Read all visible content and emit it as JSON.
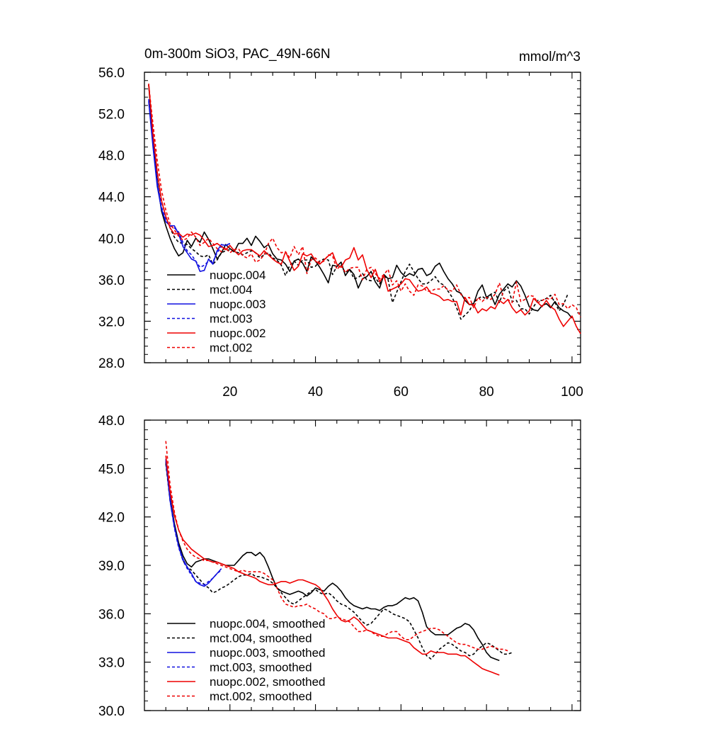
{
  "page": {
    "title_left": "0m-300m SiO3, PAC_49N-66N",
    "title_right": "mmol/m^3"
  },
  "colors": {
    "nuopc.004": "#000000",
    "mct.004": "#000000",
    "nuopc.003": "#1010e0",
    "mct.003": "#1010e0",
    "nuopc.002": "#ee0000",
    "mct.002": "#ee0000"
  },
  "chart_data": [
    {
      "type": "line",
      "panel": "top",
      "xlim": [
        0,
        102
      ],
      "ylim": [
        28,
        56
      ],
      "xticks": [
        20,
        40,
        60,
        80,
        100
      ],
      "yticks": [
        28,
        32,
        36,
        40,
        44,
        48,
        52,
        56
      ],
      "ytick_labels": [
        "28.0",
        "32.0",
        "36.0",
        "40.0",
        "44.0",
        "48.0",
        "52.0",
        "56.0"
      ],
      "grid": false,
      "legend_position": "bottom-left",
      "series": [
        {
          "name": "nuopc.004",
          "color": "#000000",
          "dash": false,
          "x_start": 1,
          "values": [
            54.8,
            49.5,
            45.4,
            42.6,
            41.2,
            40.0,
            39.0,
            38.3,
            38.6,
            39.8,
            39.2,
            40.0,
            39.6,
            40.6,
            39.9,
            39.0,
            38.0,
            38.6,
            39.4,
            39.0,
            38.7,
            39.5,
            39.5,
            40.0,
            39.3,
            40.2,
            39.7,
            39.1,
            39.4,
            38.5,
            38.0,
            37.9,
            37.5,
            36.8,
            37.8,
            38.0,
            37.6,
            36.8,
            38.2,
            37.8,
            37.2,
            36.5,
            35.7,
            37.4,
            37.3,
            37.7,
            36.4,
            37.0,
            36.5,
            35.2,
            36.1,
            36.3,
            36.8,
            35.8,
            35.2,
            36.5,
            36.1,
            36.2,
            37.4,
            36.7,
            36.3,
            36.6,
            36.4,
            37.0,
            37.1,
            36.4,
            36.6,
            37.3,
            37.6,
            36.8,
            36.1,
            35.6,
            34.9,
            34.7,
            34.0,
            33.6,
            33.7,
            34.9,
            35.5,
            34.3,
            34.6,
            33.6,
            34.6,
            35.1,
            35.6,
            35.3,
            35.9,
            35.4,
            34.5,
            33.4,
            33.1,
            33.0,
            33.5,
            33.7,
            33.3,
            33.9,
            33.3,
            33.0,
            32.8,
            32.3
          ]
        },
        {
          "name": "mct.004",
          "color": "#000000",
          "dash": true,
          "x_start": 1,
          "values": [
            54.8,
            50.0,
            46.2,
            43.6,
            42.1,
            41.0,
            40.1,
            39.6,
            39.5,
            39.4,
            39.0,
            38.7,
            38.3,
            38.2,
            38.4,
            37.5,
            37.9,
            38.6,
            38.8,
            38.9,
            38.7,
            38.6,
            38.4,
            38.6,
            38.8,
            38.6,
            38.1,
            38.4,
            38.6,
            38.1,
            37.9,
            37.4,
            36.4,
            37.4,
            37.8,
            37.4,
            37.9,
            37.9,
            37.2,
            37.3,
            37.8,
            38.0,
            37.9,
            36.5,
            37.3,
            37.4,
            36.7,
            37.0,
            36.1,
            36.2,
            36.6,
            36.0,
            35.9,
            36.2,
            35.6,
            36.4,
            36.0,
            33.8,
            34.8,
            35.8,
            36.8,
            37.5,
            36.8,
            36.1,
            35.6,
            35.6,
            35.9,
            36.3,
            35.7,
            35.5,
            34.9,
            34.3,
            33.3,
            32.2,
            32.6,
            33.0,
            33.8,
            34.2,
            34.4,
            34.1,
            34.6,
            34.8,
            33.8,
            34.9,
            35.3,
            33.9,
            34.0,
            33.2,
            33.2,
            32.7,
            33.4,
            34.0,
            34.0,
            34.2,
            34.5,
            33.8,
            33.0,
            33.6,
            34.6
          ]
        },
        {
          "name": "nuopc.003",
          "color": "#1010e0",
          "dash": false,
          "x_start": 1,
          "values": [
            53.2,
            48.8,
            45.0,
            42.8,
            41.6,
            41.2,
            41.2,
            40.4,
            39.2,
            38.6,
            38.0,
            37.8,
            36.8,
            36.9,
            38.0,
            37.5,
            38.8,
            39.4,
            39.3,
            39.5
          ]
        },
        {
          "name": "mct.003",
          "color": "#1010e0",
          "dash": true,
          "x_start": 1,
          "values": [
            53.4,
            49.2,
            45.4,
            43.0,
            41.8,
            41.2,
            41.0,
            40.6,
            39.6,
            38.8,
            38.4,
            37.8,
            37.2,
            37.4,
            37.8,
            37.7,
            38.6,
            39.2,
            39.3,
            39.4
          ]
        },
        {
          "name": "nuopc.002",
          "color": "#ee0000",
          "dash": false,
          "x_start": 1,
          "values": [
            54.9,
            50.0,
            46.4,
            43.6,
            42.1,
            41.0,
            40.4,
            40.5,
            40.1,
            40.4,
            40.3,
            40.5,
            40.3,
            39.8,
            39.2,
            39.3,
            39.5,
            39.2,
            38.9,
            39.3,
            38.8,
            38.4,
            38.8,
            38.9,
            38.9,
            38.6,
            38.3,
            38.8,
            38.4,
            38.0,
            37.7,
            37.5,
            38.7,
            37.8,
            36.9,
            37.3,
            38.5,
            38.3,
            38.5,
            37.8,
            37.5,
            37.9,
            38.3,
            38.6,
            37.5,
            37.2,
            37.9,
            38.1,
            39.1,
            37.9,
            38.4,
            37.0,
            36.2,
            37.0,
            35.8,
            36.4,
            34.9,
            35.1,
            35.3,
            35.6,
            36.1,
            36.0,
            35.4,
            34.9,
            35.0,
            35.3,
            34.7,
            34.6,
            34.4,
            34.0,
            34.1,
            33.9,
            33.9,
            32.6,
            34.3,
            33.6,
            33.6,
            32.8,
            33.2,
            33.0,
            33.4,
            33.2,
            34.0,
            33.7,
            34.1,
            33.3,
            32.8,
            33.1,
            32.6,
            33.0,
            34.2,
            33.8,
            33.4,
            34.0,
            33.4,
            33.1,
            32.2,
            31.5,
            32.0,
            32.5,
            31.5,
            30.8
          ]
        },
        {
          "name": "mct.002",
          "color": "#ee0000",
          "dash": true,
          "x_start": 1,
          "values": [
            54.8,
            51.0,
            47.5,
            44.6,
            42.7,
            41.4,
            40.8,
            40.2,
            39.8,
            40.0,
            40.6,
            40.1,
            39.3,
            39.6,
            40.0,
            39.5,
            39.0,
            38.7,
            39.1,
            38.6,
            38.9,
            39.0,
            38.3,
            38.1,
            38.5,
            37.7,
            37.9,
            38.4,
            39.5,
            40.0,
            39.1,
            38.6,
            38.7,
            38.1,
            39.2,
            38.4,
            39.2,
            36.6,
            37.9,
            38.1,
            37.6,
            37.8,
            38.4,
            38.3,
            37.0,
            37.4,
            36.7,
            37.1,
            37.2,
            37.2,
            36.0,
            37.0,
            37.2,
            36.6,
            36.1,
            36.5,
            37.0,
            35.5,
            35.9,
            34.9,
            35.6,
            34.9,
            34.5,
            35.5,
            35.4,
            34.9,
            34.9,
            35.1,
            35.1,
            35.4,
            35.0,
            34.9,
            35.5,
            34.6,
            34.2,
            34.3,
            33.3,
            34.3,
            33.9,
            34.3,
            34.1,
            34.6,
            35.7,
            34.2,
            34.1,
            33.8,
            35.8,
            33.9,
            34.1,
            34.5,
            34.4,
            33.8,
            34.0,
            34.2,
            34.1,
            34.6,
            33.6,
            33.7,
            33.2,
            33.6,
            33.3,
            32.4
          ]
        }
      ],
      "legend": [
        "nuopc.004",
        "mct.004",
        "nuopc.003",
        "mct.003",
        "nuopc.002",
        "mct.002"
      ]
    },
    {
      "type": "line",
      "panel": "bottom",
      "xlim": [
        0,
        102
      ],
      "ylim": [
        30,
        48
      ],
      "xticks": [
        20,
        40,
        60,
        80,
        100
      ],
      "yticks": [
        30,
        33,
        36,
        39,
        42,
        45,
        48
      ],
      "ytick_labels": [
        "30.0",
        "33.0",
        "36.0",
        "39.0",
        "42.0",
        "45.0",
        "48.0"
      ],
      "grid": false,
      "legend_position": "bottom-left",
      "series": [
        {
          "name": "nuopc.004, smoothed",
          "color": "#000000",
          "dash": false,
          "x_start": 5,
          "values": [
            45.4,
            43.2,
            41.6,
            40.4,
            39.6,
            39.1,
            38.9,
            39.2,
            39.3,
            39.4,
            39.4,
            39.3,
            39.2,
            39.1,
            39.0,
            39.0,
            39.0,
            39.3,
            39.6,
            39.8,
            39.8,
            39.6,
            39.8,
            39.5,
            38.9,
            38.2,
            37.6,
            37.4,
            37.3,
            37.2,
            37.3,
            37.4,
            37.3,
            37.1,
            37.3,
            37.6,
            37.5,
            37.4,
            37.7,
            37.9,
            37.7,
            37.4,
            37.0,
            36.7,
            36.5,
            36.4,
            36.3,
            36.4,
            36.3,
            36.3,
            36.2,
            36.4,
            36.5,
            36.5,
            36.6,
            36.8,
            37.0,
            36.9,
            37.0,
            36.8,
            36.1,
            35.2,
            34.9,
            34.7,
            34.7,
            34.7,
            34.7,
            34.9,
            35.1,
            35.2,
            35.4,
            35.3,
            35.0,
            34.5,
            34.1,
            33.6,
            33.3,
            33.2,
            33.1
          ]
        },
        {
          "name": "mct.004, smoothed",
          "color": "#000000",
          "dash": true,
          "x_start": 5,
          "values": [
            45.3,
            43.0,
            41.4,
            40.2,
            39.3,
            38.9,
            38.7,
            38.4,
            38.1,
            37.8,
            37.6,
            37.3,
            37.4,
            37.6,
            37.7,
            37.9,
            38.1,
            38.3,
            38.4,
            38.4,
            38.5,
            38.3,
            38.3,
            38.2,
            38.1,
            37.9,
            37.6,
            37.3,
            37.0,
            36.7,
            36.6,
            36.8,
            37.0,
            37.2,
            37.4,
            37.5,
            37.3,
            37.2,
            37.3,
            37.1,
            36.8,
            36.6,
            36.5,
            36.3,
            36.1,
            35.8,
            35.5,
            35.3,
            35.4,
            35.7,
            36.0,
            36.3,
            36.2,
            36.0,
            35.9,
            35.8,
            35.7,
            35.5,
            35.0,
            34.5,
            33.9,
            33.4,
            33.2,
            33.5,
            33.8,
            34.0,
            34.2,
            34.1,
            33.9,
            33.7,
            33.6,
            33.4,
            33.5,
            33.8,
            34.0,
            34.2,
            34.1,
            33.9,
            33.7,
            33.5,
            33.5,
            33.6
          ]
        },
        {
          "name": "nuopc.003, smoothed",
          "color": "#1010e0",
          "dash": false,
          "x_start": 5,
          "values": [
            45.6,
            43.1,
            41.4,
            40.2,
            39.4,
            38.9,
            38.5,
            38.0,
            37.8,
            37.7,
            37.9,
            38.2,
            38.5,
            38.8
          ]
        },
        {
          "name": "mct.003, smoothed",
          "color": "#1010e0",
          "dash": true,
          "x_start": 5,
          "values": [
            45.5,
            43.0,
            41.3,
            40.1,
            39.3,
            38.8,
            38.4,
            38.0,
            37.9,
            37.8,
            38.0,
            38.2,
            38.5,
            38.7
          ]
        },
        {
          "name": "nuopc.002, smoothed",
          "color": "#ee0000",
          "dash": false,
          "x_start": 5,
          "values": [
            45.8,
            43.6,
            42.1,
            41.2,
            40.6,
            40.3,
            40.0,
            39.8,
            39.6,
            39.4,
            39.3,
            39.2,
            39.2,
            39.1,
            39.0,
            38.9,
            38.8,
            38.6,
            38.5,
            38.4,
            38.3,
            38.2,
            38.0,
            37.9,
            37.8,
            37.8,
            37.9,
            38.0,
            38.0,
            37.9,
            38.0,
            38.1,
            38.1,
            38.0,
            37.9,
            37.8,
            37.6,
            37.2,
            36.8,
            36.3,
            35.9,
            35.6,
            35.5,
            35.6,
            35.8,
            35.6,
            35.3,
            35.0,
            34.9,
            34.8,
            34.7,
            34.6,
            34.5,
            34.5,
            34.5,
            34.4,
            34.3,
            34.2,
            33.9,
            33.7,
            33.5,
            33.5,
            33.7,
            33.6,
            33.6,
            33.6,
            33.5,
            33.5,
            33.5,
            33.4,
            33.4,
            33.2,
            33.0,
            32.8,
            32.6,
            32.5,
            32.4,
            32.3,
            32.2
          ]
        },
        {
          "name": "mct.002, smoothed",
          "color": "#ee0000",
          "dash": true,
          "x_start": 5,
          "values": [
            46.7,
            44.0,
            42.3,
            41.2,
            40.5,
            40.0,
            39.7,
            39.5,
            39.4,
            39.3,
            39.3,
            39.2,
            39.1,
            39.0,
            38.9,
            38.8,
            38.7,
            38.6,
            38.7,
            38.6,
            38.6,
            38.6,
            38.6,
            38.5,
            38.3,
            38.1,
            37.6,
            37.0,
            36.6,
            36.5,
            36.4,
            36.5,
            36.5,
            36.6,
            36.4,
            36.3,
            36.1,
            36.0,
            35.7,
            35.7,
            35.8,
            35.7,
            35.6,
            35.5,
            35.2,
            34.9,
            34.9,
            35.0,
            34.9,
            34.7,
            34.6,
            34.6,
            34.8,
            34.9,
            34.9,
            34.6,
            34.4,
            34.4,
            34.6,
            34.8,
            34.9,
            35.0,
            35.1,
            35.1,
            35.0,
            34.8,
            34.6,
            34.4,
            34.2,
            34.1,
            34.1,
            34.0,
            33.9,
            33.8,
            33.8,
            33.9,
            34.0,
            33.9,
            33.8,
            33.8,
            33.7
          ]
        }
      ],
      "legend": [
        "nuopc.004, smoothed",
        "mct.004, smoothed",
        "nuopc.003, smoothed",
        "mct.003, smoothed",
        "nuopc.002, smoothed",
        "mct.002, smoothed"
      ]
    }
  ]
}
